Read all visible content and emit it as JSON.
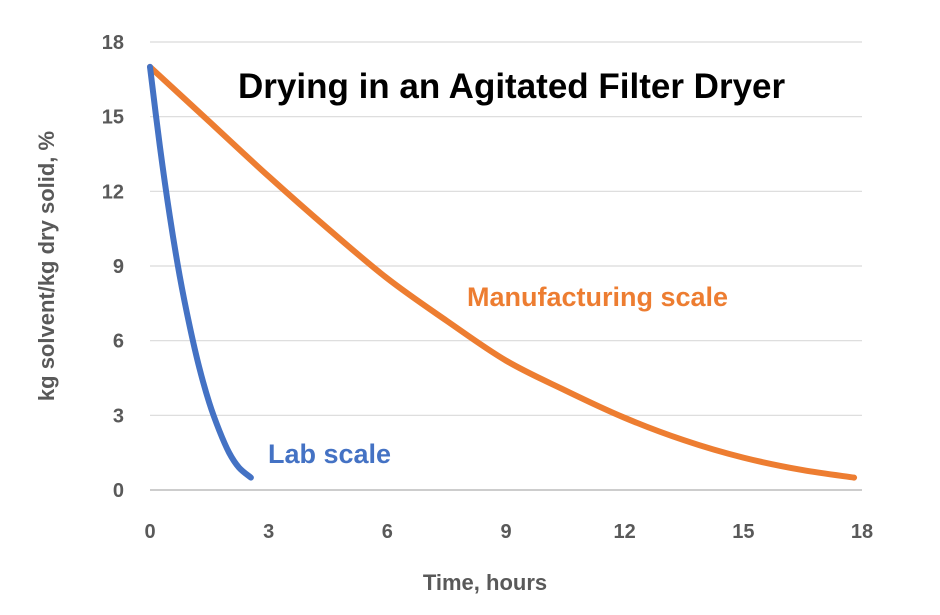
{
  "chart_data": {
    "type": "line",
    "title": "Drying in an Agitated Filter Dryer",
    "xlabel": "Time, hours",
    "ylabel": "kg solvent/kg dry solid, %",
    "xlim": [
      0,
      18
    ],
    "ylim": [
      0,
      18
    ],
    "xticks": [
      "0",
      "3",
      "6",
      "9",
      "12",
      "15",
      "18"
    ],
    "yticks": [
      "0",
      "3",
      "6",
      "9",
      "12",
      "15",
      "18"
    ],
    "grid": "horizontal",
    "series": [
      {
        "name": "Manufacturing scale",
        "color": "#ED7D31",
        "x": [
          0,
          1.5,
          3,
          4.5,
          6,
          7.5,
          9,
          10.5,
          12,
          13.5,
          15,
          16.5,
          17.8
        ],
        "y": [
          17.0,
          14.8,
          12.6,
          10.5,
          8.5,
          6.8,
          5.2,
          4.0,
          2.9,
          2.0,
          1.3,
          0.8,
          0.5
        ]
      },
      {
        "name": "Lab scale",
        "color": "#4472C4",
        "x": [
          0,
          0.25,
          0.5,
          0.75,
          1.0,
          1.25,
          1.5,
          1.75,
          2.0,
          2.25,
          2.55
        ],
        "y": [
          17.0,
          13.8,
          11.0,
          8.6,
          6.6,
          4.9,
          3.5,
          2.4,
          1.5,
          0.9,
          0.5
        ]
      }
    ]
  }
}
